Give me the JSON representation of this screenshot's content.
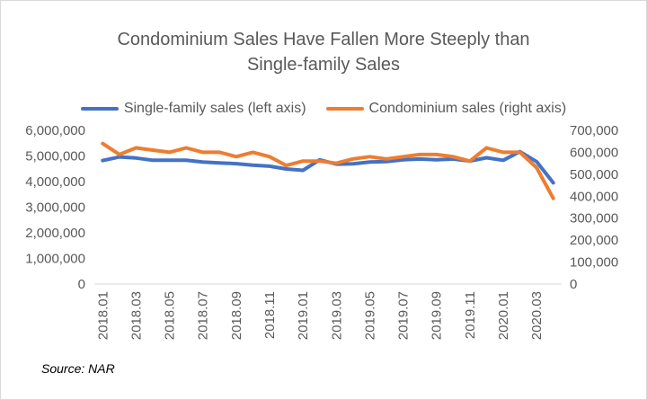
{
  "chart_data": {
    "type": "line",
    "title_line1": "Condominium Sales Have Fallen More Steeply than",
    "title_line2": "Single-family Sales",
    "source": "Source: NAR",
    "colors": {
      "single_family": "#4472c4",
      "condo": "#ed7d31",
      "text": "#595959",
      "axis": "#d9d9d9"
    },
    "x": [
      "2018.01",
      "2018.02",
      "2018.03",
      "2018.04",
      "2018.05",
      "2018.06",
      "2018.07",
      "2018.08",
      "2018.09",
      "2018.10",
      "2018.11",
      "2018.12",
      "2019.01",
      "2019.02",
      "2019.03",
      "2019.04",
      "2019.05",
      "2019.06",
      "2019.07",
      "2019.08",
      "2019.09",
      "2019.10",
      "2019.11",
      "2019.12",
      "2020.01",
      "2020.02",
      "2020.03",
      "2020.04"
    ],
    "x_tick_labels": [
      "2018.01",
      "2018.03",
      "2018.05",
      "2018.07",
      "2018.09",
      "2018.11",
      "2019.01",
      "2019.03",
      "2019.05",
      "2019.07",
      "2019.09",
      "2019.11",
      "2020.01",
      "2020.03"
    ],
    "left_axis": {
      "ylim": [
        0,
        6000000
      ],
      "ticks": [
        "0",
        "1,000,000",
        "2,000,000",
        "3,000,000",
        "4,000,000",
        "5,000,000",
        "6,000,000"
      ]
    },
    "right_axis": {
      "ylim": [
        0,
        700000
      ],
      "ticks": [
        "0",
        "100,000",
        "200,000",
        "300,000",
        "400,000",
        "500,000",
        "600,000",
        "700,000"
      ]
    },
    "series": [
      {
        "name": "Single-family sales (left axis)",
        "axis": "left",
        "values": [
          4820000,
          4960000,
          4920000,
          4830000,
          4830000,
          4830000,
          4760000,
          4730000,
          4700000,
          4640000,
          4600000,
          4490000,
          4440000,
          4850000,
          4680000,
          4690000,
          4760000,
          4780000,
          4850000,
          4880000,
          4850000,
          4880000,
          4800000,
          4930000,
          4830000,
          5170000,
          4780000,
          3950000
        ]
      },
      {
        "name": "Condominium sales (right axis)",
        "axis": "right",
        "values": [
          640000,
          590000,
          620000,
          610000,
          600000,
          620000,
          600000,
          600000,
          580000,
          600000,
          580000,
          540000,
          560000,
          560000,
          550000,
          570000,
          580000,
          570000,
          580000,
          590000,
          590000,
          580000,
          560000,
          620000,
          600000,
          600000,
          530000,
          390000
        ]
      }
    ]
  }
}
